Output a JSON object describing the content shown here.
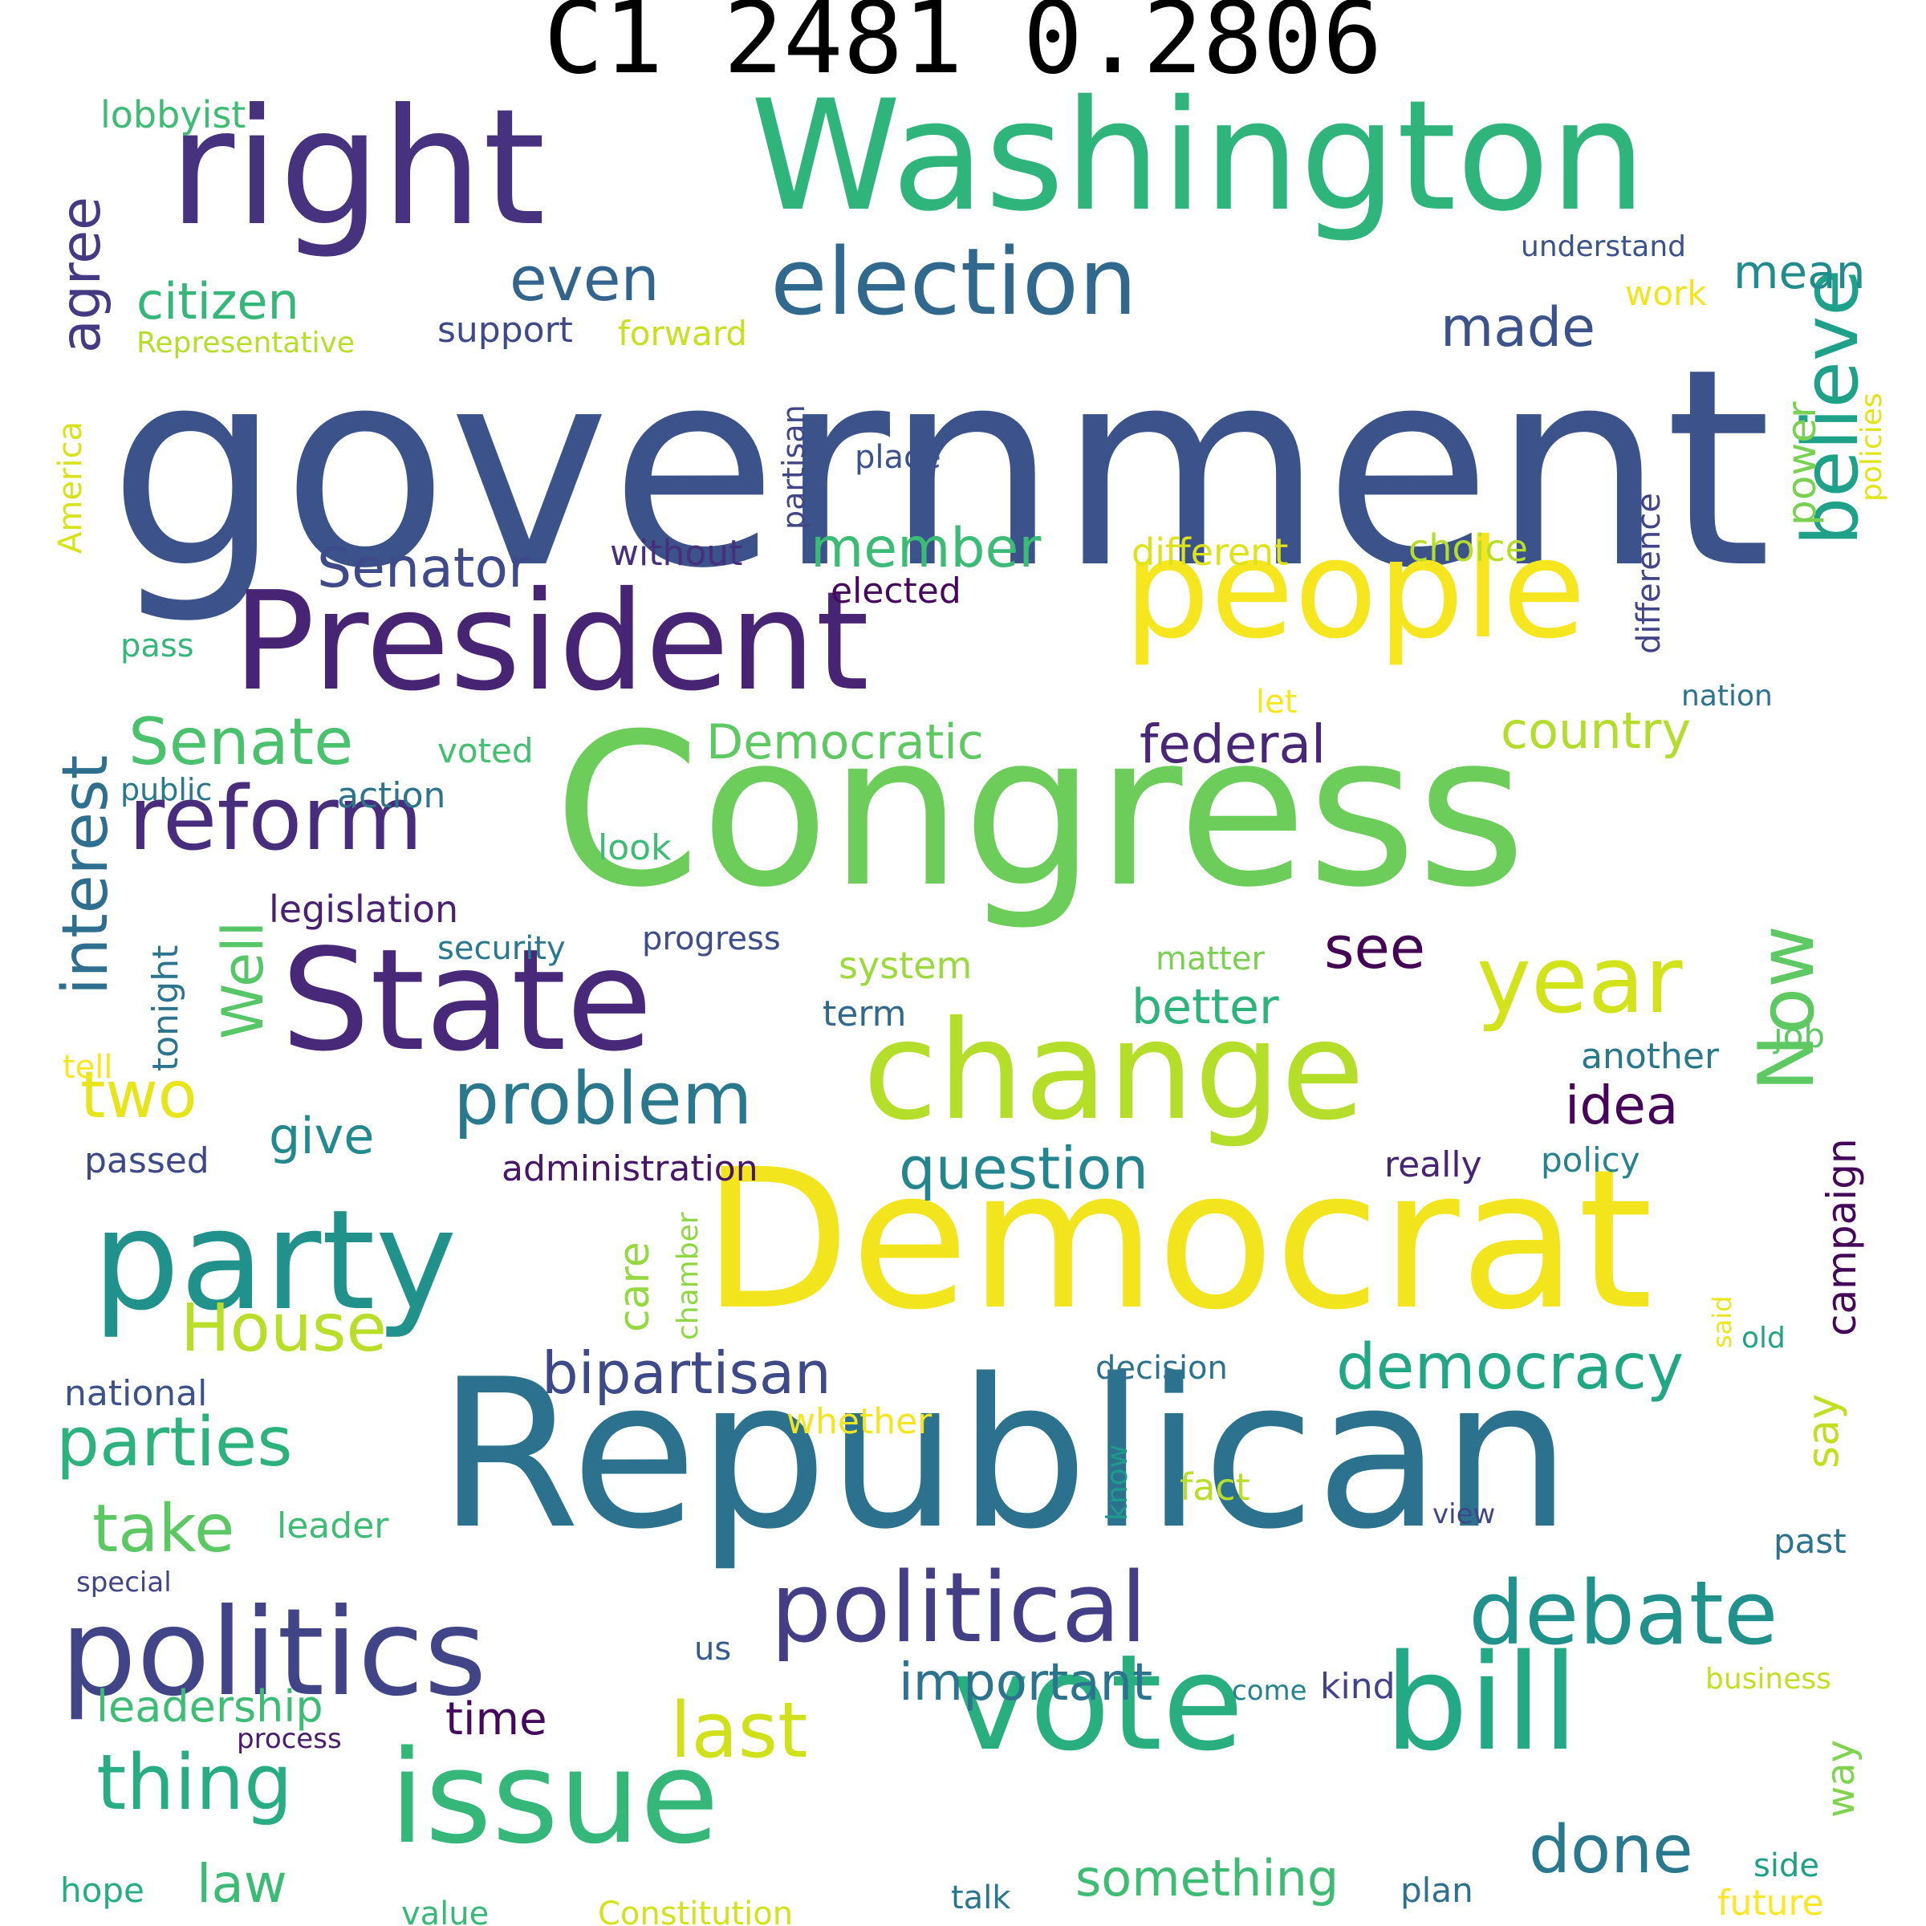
{
  "title": "C1 2481 0.2806",
  "words": [
    {
      "text": "government",
      "color": "#3b528b"
    },
    {
      "text": "Congress",
      "color": "#6ccd5a"
    },
    {
      "text": "Republican",
      "color": "#2c728e"
    },
    {
      "text": "Democrat",
      "color": "#f2e51d"
    },
    {
      "text": "right",
      "color": "#46327e"
    },
    {
      "text": "Washington",
      "color": "#2fb47c"
    },
    {
      "text": "President",
      "color": "#482475"
    },
    {
      "text": "people",
      "color": "#f5e61f"
    },
    {
      "text": "State",
      "color": "#482878"
    },
    {
      "text": "change",
      "color": "#b5de2b"
    },
    {
      "text": "party",
      "color": "#21918c"
    },
    {
      "text": "issue",
      "color": "#35b779"
    },
    {
      "text": "vote",
      "color": "#29af7f"
    },
    {
      "text": "bill",
      "color": "#23a983"
    },
    {
      "text": "politics",
      "color": "#414487"
    },
    {
      "text": "political",
      "color": "#433e85"
    },
    {
      "text": "election",
      "color": "#31688e"
    },
    {
      "text": "debate",
      "color": "#21918c"
    },
    {
      "text": "believe",
      "color": "#1fa088"
    },
    {
      "text": "year",
      "color": "#d2e21b"
    },
    {
      "text": "reform",
      "color": "#472d7b"
    },
    {
      "text": "Now",
      "color": "#5ec962"
    },
    {
      "text": "problem",
      "color": "#2a788e"
    },
    {
      "text": "last",
      "color": "#d0e11c"
    },
    {
      "text": "thing",
      "color": "#27ad81"
    },
    {
      "text": "democracy",
      "color": "#22a785"
    },
    {
      "text": "bipartisan",
      "color": "#3e4989"
    },
    {
      "text": "parties",
      "color": "#2db27d"
    },
    {
      "text": "House",
      "color": "#b8de29"
    },
    {
      "text": "question",
      "color": "#25858e"
    },
    {
      "text": "interest",
      "color": "#2e6e8e"
    },
    {
      "text": "Senate",
      "color": "#4ac16d"
    },
    {
      "text": "citizen",
      "color": "#35b779"
    },
    {
      "text": "even",
      "color": "#32648e"
    },
    {
      "text": "agree",
      "color": "#443a83"
    },
    {
      "text": "Senator",
      "color": "#3e4a89"
    },
    {
      "text": "member",
      "color": "#3bbb75"
    },
    {
      "text": "federal",
      "color": "#482777"
    },
    {
      "text": "Democratic",
      "color": "#5ec962"
    },
    {
      "text": "country",
      "color": "#b2dd2d"
    },
    {
      "text": "done",
      "color": "#2a788e"
    },
    {
      "text": "take",
      "color": "#5cc863"
    },
    {
      "text": "important",
      "color": "#2c738e"
    },
    {
      "text": "something",
      "color": "#3fbc73"
    },
    {
      "text": "two",
      "color": "#e7e419"
    },
    {
      "text": "see",
      "color": "#440154"
    },
    {
      "text": "idea",
      "color": "#450457"
    },
    {
      "text": "give",
      "color": "#23898e"
    },
    {
      "text": "Well",
      "color": "#56c667"
    },
    {
      "text": "better",
      "color": "#2eb37c"
    },
    {
      "text": "made",
      "color": "#3b528b"
    },
    {
      "text": "mean",
      "color": "#228c8d"
    },
    {
      "text": "campaign",
      "color": "#450559"
    },
    {
      "text": "leadership",
      "color": "#3dbc74"
    },
    {
      "text": "law",
      "color": "#3bbb75"
    },
    {
      "text": "time",
      "color": "#46085c"
    },
    {
      "text": "care",
      "color": "#95d840"
    },
    {
      "text": "say",
      "color": "#c2df23"
    },
    {
      "text": "power",
      "color": "#7ad151"
    },
    {
      "text": "difference",
      "color": "#414487"
    },
    {
      "text": "partisan",
      "color": "#404688"
    },
    {
      "text": "different",
      "color": "#dde318"
    },
    {
      "text": "choice",
      "color": "#b5de2b"
    },
    {
      "text": "without",
      "color": "#472f7d"
    },
    {
      "text": "elected",
      "color": "#46085c"
    },
    {
      "text": "policies",
      "color": "#e2e418"
    },
    {
      "text": "America",
      "color": "#d8e219"
    },
    {
      "text": "support",
      "color": "#3e4989"
    },
    {
      "text": "forward",
      "color": "#c8e020"
    },
    {
      "text": "work",
      "color": "#f1e51d"
    },
    {
      "text": "understand",
      "color": "#3b528b"
    },
    {
      "text": "lobbyist",
      "color": "#3fbc73"
    },
    {
      "text": "Representative",
      "color": "#b5de2b"
    },
    {
      "text": "place",
      "color": "#3b528b"
    },
    {
      "text": "pass",
      "color": "#35b779"
    },
    {
      "text": "let",
      "color": "#f6e620"
    },
    {
      "text": "nation",
      "color": "#2c728e"
    },
    {
      "text": "voted",
      "color": "#44bf70"
    },
    {
      "text": "public",
      "color": "#2a788e"
    },
    {
      "text": "action",
      "color": "#2c738e"
    },
    {
      "text": "look",
      "color": "#3dbc74"
    },
    {
      "text": "legislation",
      "color": "#482173"
    },
    {
      "text": "security",
      "color": "#2a788e"
    },
    {
      "text": "progress",
      "color": "#3e4c8a"
    },
    {
      "text": "tonight",
      "color": "#2c738e"
    },
    {
      "text": "system",
      "color": "#9bd93c"
    },
    {
      "text": "matter",
      "color": "#7ad151"
    },
    {
      "text": "term",
      "color": "#31688e"
    },
    {
      "text": "tell",
      "color": "#f8e621"
    },
    {
      "text": "another",
      "color": "#2a788e"
    },
    {
      "text": "job",
      "color": "#5ec962"
    },
    {
      "text": "passed",
      "color": "#3e4989"
    },
    {
      "text": "administration",
      "color": "#481668"
    },
    {
      "text": "really",
      "color": "#482475"
    },
    {
      "text": "policy",
      "color": "#26828e"
    },
    {
      "text": "chamber",
      "color": "#8fd744"
    },
    {
      "text": "said",
      "color": "#ece51b"
    },
    {
      "text": "old",
      "color": "#20a486"
    },
    {
      "text": "decision",
      "color": "#2c728e"
    },
    {
      "text": "national",
      "color": "#3b528b"
    },
    {
      "text": "whether",
      "color": "#f4e61e"
    },
    {
      "text": "know",
      "color": "#1e9b8a"
    },
    {
      "text": "fact",
      "color": "#b8de29"
    },
    {
      "text": "leader",
      "color": "#3fbc73"
    },
    {
      "text": "view",
      "color": "#3f4788"
    },
    {
      "text": "past",
      "color": "#2c728e"
    },
    {
      "text": "special",
      "color": "#404688"
    },
    {
      "text": "us",
      "color": "#365c8d"
    },
    {
      "text": "business",
      "color": "#c0df25"
    },
    {
      "text": "come",
      "color": "#26828e"
    },
    {
      "text": "kind",
      "color": "#414487"
    },
    {
      "text": "process",
      "color": "#4a1c6f"
    },
    {
      "text": "way",
      "color": "#7fd34e"
    },
    {
      "text": "side",
      "color": "#1fa188"
    },
    {
      "text": "future",
      "color": "#fde725"
    },
    {
      "text": "hope",
      "color": "#27ad81"
    },
    {
      "text": "value",
      "color": "#38b977"
    },
    {
      "text": "Constitution",
      "color": "#d2e21b"
    },
    {
      "text": "talk",
      "color": "#2a768e"
    },
    {
      "text": "plan",
      "color": "#2d708e"
    }
  ]
}
